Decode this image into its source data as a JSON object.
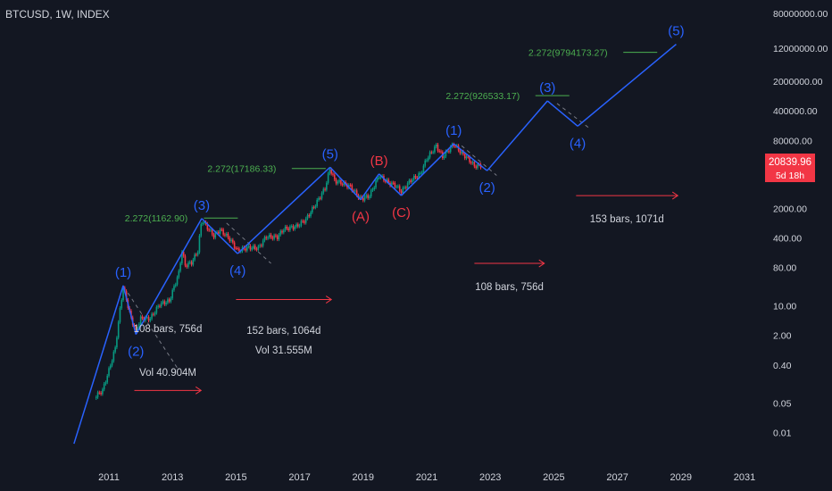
{
  "header": {
    "ticker": "BTCUSD, 1W, INDEX"
  },
  "price_label": {
    "value": "20839.96",
    "countdown": "5d 18h"
  },
  "colors": {
    "background": "#131722",
    "wave_line": "#2962ff",
    "wave_label_blue": "#2962ff",
    "wave_label_red": "#f23645",
    "candle_up": "#089981",
    "candle_down": "#f23645",
    "fib": "#4caf50",
    "arrow": "#f23645",
    "axis_text": "#d1d4dc",
    "projection": "#787b86"
  },
  "chart_data": {
    "type": "line",
    "title": "BTCUSD, 1W, INDEX",
    "y_scale": "log",
    "x_ticks": [
      "2011",
      "2013",
      "2015",
      "2017",
      "2019",
      "2021",
      "2023",
      "2025",
      "2027",
      "2029",
      "2031"
    ],
    "y_ticks": [
      "80000000.00",
      "12000000.00",
      "2000000.00",
      "400000.00",
      "80000.00",
      "2000.00",
      "400.00",
      "80.00",
      "10.00",
      "2.00",
      "0.40",
      "0.05",
      "0.01"
    ],
    "wave_path": {
      "name": "Elliott wave count",
      "points": [
        {
          "t": 2009.9,
          "v": 0.0055
        },
        {
          "t": 2011.45,
          "v": 30
        },
        {
          "t": 2011.85,
          "v": 2.1
        },
        {
          "t": 2013.92,
          "v": 1150
        },
        {
          "t": 2015.05,
          "v": 170
        },
        {
          "t": 2017.96,
          "v": 18700
        },
        {
          "t": 2018.92,
          "v": 3200
        },
        {
          "t": 2019.5,
          "v": 13000
        },
        {
          "t": 2020.2,
          "v": 4000
        },
        {
          "t": 2021.85,
          "v": 67000
        },
        {
          "t": 2022.9,
          "v": 15500
        },
        {
          "t": 2024.8,
          "v": 690000
        },
        {
          "t": 2025.75,
          "v": 175000
        },
        {
          "t": 2028.85,
          "v": 15000000
        }
      ]
    },
    "price_series": {
      "name": "BTCUSD weekly",
      "points": [
        {
          "t": 2010.55,
          "v": 0.07
        },
        {
          "t": 2010.8,
          "v": 0.1
        },
        {
          "t": 2011.0,
          "v": 0.3
        },
        {
          "t": 2011.2,
          "v": 1.0
        },
        {
          "t": 2011.35,
          "v": 8
        },
        {
          "t": 2011.45,
          "v": 28
        },
        {
          "t": 2011.55,
          "v": 14
        },
        {
          "t": 2011.7,
          "v": 5
        },
        {
          "t": 2011.85,
          "v": 2.5
        },
        {
          "t": 2012.0,
          "v": 5
        },
        {
          "t": 2012.3,
          "v": 5
        },
        {
          "t": 2012.6,
          "v": 11
        },
        {
          "t": 2012.9,
          "v": 13
        },
        {
          "t": 2013.2,
          "v": 60
        },
        {
          "t": 2013.3,
          "v": 200
        },
        {
          "t": 2013.4,
          "v": 90
        },
        {
          "t": 2013.6,
          "v": 105
        },
        {
          "t": 2013.8,
          "v": 200
        },
        {
          "t": 2013.92,
          "v": 1100
        },
        {
          "t": 2014.1,
          "v": 700
        },
        {
          "t": 2014.3,
          "v": 450
        },
        {
          "t": 2014.5,
          "v": 620
        },
        {
          "t": 2014.8,
          "v": 380
        },
        {
          "t": 2015.05,
          "v": 200
        },
        {
          "t": 2015.4,
          "v": 240
        },
        {
          "t": 2015.7,
          "v": 230
        },
        {
          "t": 2015.95,
          "v": 430
        },
        {
          "t": 2016.3,
          "v": 420
        },
        {
          "t": 2016.5,
          "v": 650
        },
        {
          "t": 2016.9,
          "v": 750
        },
        {
          "t": 2017.2,
          "v": 1100
        },
        {
          "t": 2017.5,
          "v": 2500
        },
        {
          "t": 2017.8,
          "v": 6000
        },
        {
          "t": 2017.96,
          "v": 18000
        },
        {
          "t": 2018.1,
          "v": 9000
        },
        {
          "t": 2018.3,
          "v": 8000
        },
        {
          "t": 2018.6,
          "v": 6500
        },
        {
          "t": 2018.92,
          "v": 3300
        },
        {
          "t": 2019.2,
          "v": 4000
        },
        {
          "t": 2019.5,
          "v": 12000
        },
        {
          "t": 2019.8,
          "v": 8000
        },
        {
          "t": 2020.0,
          "v": 7200
        },
        {
          "t": 2020.2,
          "v": 5000
        },
        {
          "t": 2020.5,
          "v": 9300
        },
        {
          "t": 2020.8,
          "v": 13000
        },
        {
          "t": 2021.0,
          "v": 30000
        },
        {
          "t": 2021.3,
          "v": 60000
        },
        {
          "t": 2021.5,
          "v": 33000
        },
        {
          "t": 2021.85,
          "v": 66000
        },
        {
          "t": 2022.1,
          "v": 40000
        },
        {
          "t": 2022.3,
          "v": 30000
        },
        {
          "t": 2022.5,
          "v": 20000
        },
        {
          "t": 2022.72,
          "v": 20840
        }
      ]
    },
    "wave_labels": [
      {
        "text": "(1)",
        "t": 2011.45,
        "v": 30,
        "pos": "above",
        "color": "blue"
      },
      {
        "text": "(2)",
        "t": 2011.85,
        "v": 2.1,
        "pos": "below",
        "color": "blue"
      },
      {
        "text": "(3)",
        "t": 2013.92,
        "v": 1150,
        "pos": "above",
        "color": "blue"
      },
      {
        "text": "(4)",
        "t": 2015.05,
        "v": 170,
        "pos": "below",
        "color": "blue"
      },
      {
        "text": "(5)",
        "t": 2017.96,
        "v": 18700,
        "pos": "above",
        "color": "blue"
      },
      {
        "text": "(A)",
        "t": 2018.92,
        "v": 3200,
        "pos": "below",
        "color": "red"
      },
      {
        "text": "(B)",
        "t": 2019.5,
        "v": 13000,
        "pos": "above",
        "color": "red"
      },
      {
        "text": "(C)",
        "t": 2020.2,
        "v": 4000,
        "pos": "below",
        "color": "red"
      },
      {
        "text": "(1)",
        "t": 2021.85,
        "v": 67000,
        "pos": "above",
        "color": "blue"
      },
      {
        "text": "(2)",
        "t": 2022.9,
        "v": 15500,
        "pos": "below",
        "color": "blue"
      },
      {
        "text": "(3)",
        "t": 2024.8,
        "v": 690000,
        "pos": "above",
        "color": "blue"
      },
      {
        "text": "(4)",
        "t": 2025.75,
        "v": 175000,
        "pos": "below",
        "color": "blue"
      },
      {
        "text": "(5)",
        "t": 2028.85,
        "v": 15000000,
        "pos": "above",
        "color": "blue"
      }
    ],
    "fib_targets": [
      {
        "text": "2.272(1162.90)",
        "t": 2011.5,
        "v": 1180
      },
      {
        "text": "2.272(17186.33)",
        "t": 2014.1,
        "v": 17500
      },
      {
        "text": "2.272(926533.17)",
        "t": 2021.6,
        "v": 920000
      },
      {
        "text": "2.272(9794173.27)",
        "t": 2024.2,
        "v": 9700000
      }
    ],
    "measurements": [
      {
        "lines": [
          "108 bars, 756d",
          "Vol 40.904M"
        ],
        "arrow": {
          "t1": 2011.8,
          "t2": 2013.9,
          "v": 0.1
        }
      },
      {
        "lines": [
          "152 bars, 1064d",
          "Vol 31.555M"
        ],
        "arrow": {
          "t1": 2015.0,
          "t2": 2018.0,
          "v": 14
        }
      },
      {
        "lines": [
          "108 bars, 756d"
        ],
        "arrow": {
          "t1": 2022.5,
          "t2": 2024.7,
          "v": 100
        }
      },
      {
        "lines": [
          "153 bars, 1071d"
        ],
        "arrow": {
          "t1": 2025.7,
          "t2": 2028.9,
          "v": 4000
        }
      }
    ]
  }
}
